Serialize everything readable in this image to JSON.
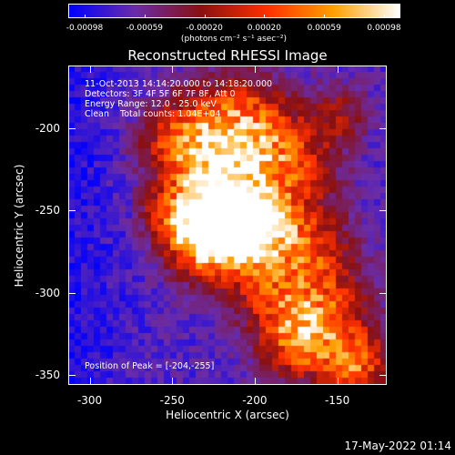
{
  "colorbar": {
    "tick_labels": [
      "-0.00098",
      "-0.00059",
      "-0.00020",
      "0.00020",
      "0.00059",
      "0.00098"
    ],
    "units": "(photons cm⁻² s⁻¹ asec⁻²)"
  },
  "title": "Reconstructed RHESSI Image",
  "annotations": {
    "time": "11-Oct-2013 14:14:20.000 to 14:18:20.000",
    "detectors": "Detectors: 3F 4F 5F 6F 7F 8F, Att 0",
    "energy": "Energy Range: 12.0 - 25.0 keV",
    "clean": "Clean    Total counts: 1.04E+04",
    "peak": "Position of Peak = [-204,-255]"
  },
  "axes": {
    "xlabel": "Heliocentric X (arcsec)",
    "ylabel": "Heliocentric Y (arcsec)",
    "xticks": [
      "-300",
      "-250",
      "-200",
      "-150"
    ],
    "yticks": [
      "-200",
      "-250",
      "-300",
      "-350"
    ],
    "xlim": [
      -313,
      -120
    ],
    "ylim": [
      -356,
      -162
    ]
  },
  "footer_date": "17-May-2022 01:14",
  "colormap": [
    "#0000ff",
    "#6a2ca8",
    "#8a1010",
    "#ff3000",
    "#ffa000",
    "#ffffff"
  ]
}
